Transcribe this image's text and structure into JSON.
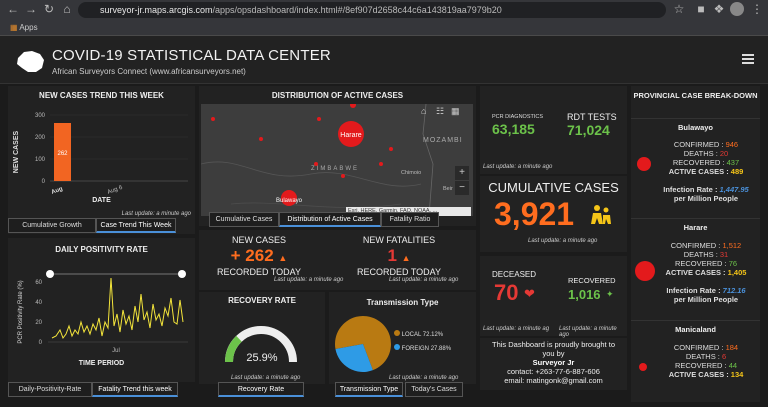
{
  "browser": {
    "url_host": "surveyor-jr.maps.arcgis.com",
    "url_path": "/apps/opsdashboard/index.html#/8ef907d2658c44c6a143819aa7979b20",
    "bookmarks_label": "Apps"
  },
  "header": {
    "title": "COVID-19 STATISTICAL DATA CENTER",
    "subtitle": "African Surveyors Connect (www.africansurveyors.net)"
  },
  "trend": {
    "title": "NEW CASES TREND THIS WEEK",
    "ylabel": "NEW CASES",
    "xlabel": "DATE",
    "yticks": [
      "300",
      "200",
      "100",
      "0"
    ],
    "xticks": [
      "Aug",
      "Aug 6"
    ],
    "bar_label": "262",
    "last_update": "Last update: a minute ago",
    "tabs": [
      "Cumulative Growth",
      "Case Trend This Week"
    ]
  },
  "map": {
    "title": "DISTRIBUTION OF ACTIVE CASES",
    "labels": [
      "Harare",
      "Bulawayo",
      "ZIMBABWE",
      "MOZAMBI",
      "Chimoio",
      "Beir"
    ],
    "attribution": "Esri, HERE, Garmin, FAO, NOAA, ...",
    "tabs": [
      "Cumulative Cases",
      "Distribution of Active Cases",
      "Fatality Ratio"
    ],
    "zoom_in": "+",
    "zoom_out": "−"
  },
  "tests": {
    "pcr_label": "PCR DIAGNOSTICS",
    "pcr_value": "63,185",
    "rdt_label": "RDT TESTS",
    "rdt_value": "71,024",
    "last_update": "Last update: a minute ago"
  },
  "cumulative": {
    "label": "CUMULATIVE CASES",
    "value": "3,921",
    "last_update": "Last update: a minute ago"
  },
  "deceased": {
    "label": "DECEASED",
    "value": "70",
    "last_update": "Last update: a minute ag"
  },
  "recovered": {
    "label": "RECOVERED",
    "value": "1,016",
    "last_update": "Last update: a minute ago"
  },
  "credits": {
    "line1": "This Dashboard is proudly brought to",
    "line2": "you by",
    "name": "Surveyor Jr",
    "contact": "contact: +263-77-6-887-606",
    "email": "email: matingonk@gmail.com"
  },
  "positivity": {
    "title": "DAILY POSITIVITY RATE",
    "ylabel": "PCR Positivity Rate (%)",
    "xlabel": "TIME PERIOD",
    "yticks": [
      "60",
      "40",
      "20",
      "0"
    ],
    "xtick": "Jul",
    "tabs": [
      "Daily-Positivity-Rate",
      "Fatality Trend this week"
    ]
  },
  "new_cases": {
    "label": "NEW CASES",
    "value": "+ 262",
    "sublabel": "RECORDED TODAY",
    "last_update": "Last update: a minute ago"
  },
  "new_fatalities": {
    "label": "NEW FATALITIES",
    "value": "1",
    "sublabel": "RECORDED TODAY",
    "last_update": "Last update: a minute ago"
  },
  "recovery": {
    "title": "RECOVERY RATE",
    "value_text": "25.9%",
    "fraction": 0.259,
    "last_update": "Last update: a minute ago",
    "tab": "Recovery Rate"
  },
  "transmission": {
    "title": "Transmission Type",
    "legend": [
      {
        "name": "LOCAL",
        "pct": "72.12%",
        "value": 72.12,
        "color": "#b97a12"
      },
      {
        "name": "FOREIGN",
        "pct": "27.88%",
        "value": 27.88,
        "color": "#2e9be6"
      }
    ],
    "last_update": "Last update: a minute ago",
    "tabs": [
      "Transmission Type",
      "Today's Cases"
    ]
  },
  "provinces": {
    "title": "PROVINCIAL CASE BREAK-DOWN",
    "items": [
      {
        "name": "Bulawayo",
        "confirmed_label": "CONFIRMED :",
        "confirmed": "946",
        "deaths_label": "DEATHS :",
        "deaths": "20",
        "recovered_label": "RECOVERED :",
        "recovered": "437",
        "active_label": "ACTIVE CASES :",
        "active": "489",
        "infection_label": "Infection Rate :",
        "infection": "1,447.95",
        "per": "per Million People"
      },
      {
        "name": "Harare",
        "confirmed_label": "CONFIRMED :",
        "confirmed": "1,512",
        "deaths_label": "DEATHS :",
        "deaths": "31",
        "recovered_label": "RECOVERED :",
        "recovered": "76",
        "active_label": "ACTIVE CASES :",
        "active": "1,405",
        "infection_label": "Infection Rate :",
        "infection": "712.16",
        "per": "per Million People"
      },
      {
        "name": "Manicaland",
        "confirmed_label": "CONFIRMED :",
        "confirmed": "184",
        "deaths_label": "DEATHS :",
        "deaths": "6",
        "recovered_label": "RECOVERED :",
        "recovered": "44",
        "active_label": "ACTIVE CASES :",
        "active": "134"
      }
    ]
  }
}
